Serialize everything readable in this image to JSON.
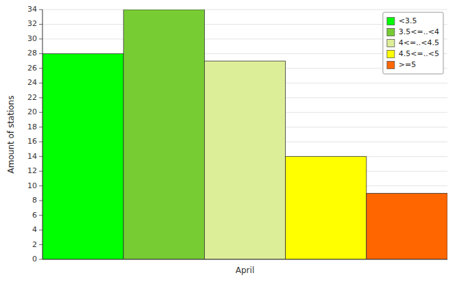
{
  "chart_data": {
    "type": "bar",
    "y_label": "Amount of stations",
    "categories": [
      "April"
    ],
    "series": [
      {
        "name": "<3.5",
        "color": "#00FF00",
        "values": [
          28
        ]
      },
      {
        "name": "3.5<=..<4",
        "color": "#77CC33",
        "values": [
          34
        ]
      },
      {
        "name": "4<=..<4.5",
        "color": "#DDEE99",
        "values": [
          27
        ]
      },
      {
        "name": "4.5<=..<5",
        "color": "#FFFF00",
        "values": [
          14
        ]
      },
      {
        "name": ">=5",
        "color": "#FF6600",
        "values": [
          9
        ]
      }
    ],
    "ylim": [
      0,
      34
    ],
    "yticks": [
      0,
      2,
      4,
      6,
      8,
      10,
      12,
      14,
      16,
      18,
      20,
      22,
      24,
      26,
      28,
      30,
      32,
      34
    ],
    "grid": true,
    "legend": "top-right"
  }
}
